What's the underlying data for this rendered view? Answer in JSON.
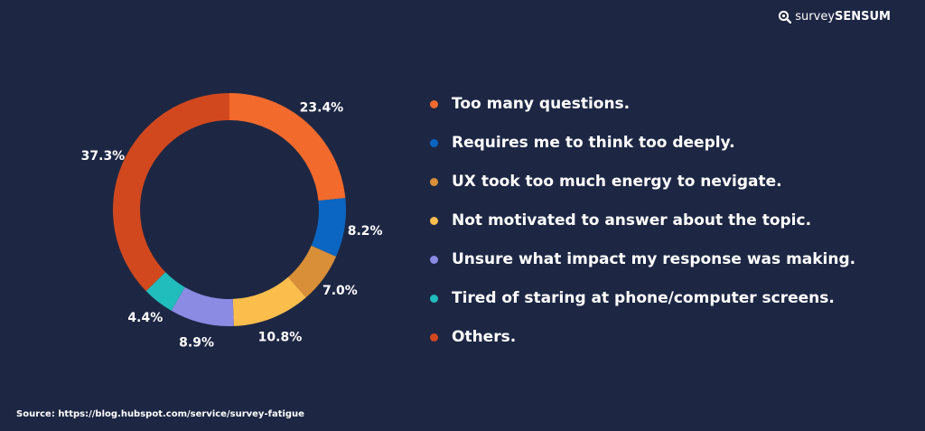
{
  "brand": {
    "name_light": "survey",
    "name_bold": "SENSUM",
    "logo_icon": "magnifier-logo-icon"
  },
  "source": "Source: https://blog.hubspot.com/service/survey-fatigue",
  "chart_data": {
    "type": "pie",
    "variant": "donut",
    "title": "",
    "legend_position": "right",
    "background": "#1d2744",
    "categories": [
      "Too many questions.",
      "Requires me to think too deeply.",
      "UX took too much energy to nevigate.",
      "Not motivated to answer about the topic.",
      "Unsure what impact my response was making.",
      "Tired of staring at phone/computer screens.",
      "Others."
    ],
    "values": [
      23.4,
      8.2,
      7.0,
      10.8,
      8.9,
      4.4,
      37.3
    ],
    "value_labels": [
      "23.4%",
      "8.2%",
      "7.0%",
      "10.8%",
      "8.9%",
      "4.4%",
      "37.3%"
    ],
    "colors": [
      "#f26a2c",
      "#0a66c2",
      "#d98f38",
      "#fbbd4c",
      "#8b8be4",
      "#21bcbc",
      "#d2481e"
    ]
  }
}
